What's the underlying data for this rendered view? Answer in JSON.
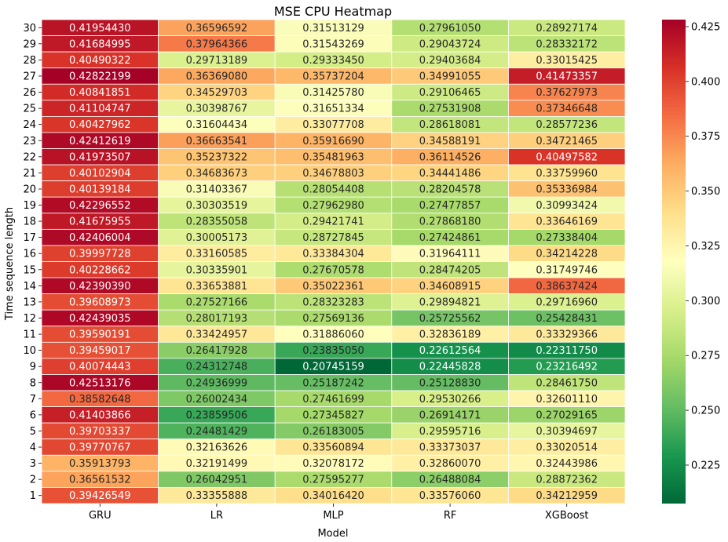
{
  "chart_data": {
    "type": "heatmap",
    "title": "MSE CPU Heatmap",
    "xlabel": "Model",
    "ylabel": "Time sequence length",
    "columns": [
      "GRU",
      "LR",
      "MLP",
      "RF",
      "XGBoost"
    ],
    "rows": [
      "30",
      "29",
      "28",
      "27",
      "26",
      "25",
      "24",
      "23",
      "22",
      "21",
      "20",
      "19",
      "18",
      "17",
      "16",
      "15",
      "14",
      "13",
      "12",
      "11",
      "10",
      "9",
      "8",
      "7",
      "6",
      "5",
      "4",
      "3",
      "2",
      "1"
    ],
    "values": [
      [
        0.4195443,
        0.36596592,
        0.31513129,
        0.2796105,
        0.28927174
      ],
      [
        0.41684995,
        0.37964366,
        0.31543269,
        0.29043724,
        0.28332172
      ],
      [
        0.40490322,
        0.29713189,
        0.2933345,
        0.29403684,
        0.33015425
      ],
      [
        0.42822199,
        0.3636908,
        0.35737204,
        0.34991055,
        0.41473357
      ],
      [
        0.40841851,
        0.34529703,
        0.3142578,
        0.29106465,
        0.37627973
      ],
      [
        0.41104747,
        0.30398767,
        0.31651334,
        0.27531908,
        0.37346648
      ],
      [
        0.40427962,
        0.31604434,
        0.33077708,
        0.28618081,
        0.28577236
      ],
      [
        0.42412619,
        0.36663541,
        0.3591669,
        0.34588191,
        0.34721465
      ],
      [
        0.41973507,
        0.35237322,
        0.35481963,
        0.36114526,
        0.40497582
      ],
      [
        0.40102904,
        0.34683673,
        0.34678803,
        0.34441486,
        0.3375996
      ],
      [
        0.40139184,
        0.31403367,
        0.28054408,
        0.28204578,
        0.35336984
      ],
      [
        0.42296552,
        0.30303519,
        0.2796298,
        0.27477857,
        0.30993424
      ],
      [
        0.41675955,
        0.28355058,
        0.29421741,
        0.2786818,
        0.33646169
      ],
      [
        0.42406004,
        0.30005173,
        0.28727845,
        0.27424861,
        0.27338404
      ],
      [
        0.39997728,
        0.33160585,
        0.33384304,
        0.31964111,
        0.34214228
      ],
      [
        0.40228662,
        0.30335901,
        0.27670578,
        0.28474205,
        0.31749746
      ],
      [
        0.4239039,
        0.33653881,
        0.35022361,
        0.34608915,
        0.38637424
      ],
      [
        0.39608973,
        0.27527166,
        0.28323283,
        0.29894821,
        0.2971696
      ],
      [
        0.42439035,
        0.28017193,
        0.27569136,
        0.25725562,
        0.25428431
      ],
      [
        0.39590191,
        0.33424957,
        0.3188606,
        0.32836189,
        0.33329366
      ],
      [
        0.39459017,
        0.26417928,
        0.2383505,
        0.22612564,
        0.2231175
      ],
      [
        0.40074443,
        0.24312748,
        0.20745159,
        0.22445828,
        0.23216492
      ],
      [
        0.42513176,
        0.24936999,
        0.25187242,
        0.2512883,
        0.2846175
      ],
      [
        0.38582648,
        0.26002434,
        0.27461699,
        0.29530266,
        0.3260111
      ],
      [
        0.41403866,
        0.23859506,
        0.27345827,
        0.26914171,
        0.27029165
      ],
      [
        0.39703337,
        0.24481429,
        0.26183005,
        0.29595716,
        0.30394697
      ],
      [
        0.39770767,
        0.32163626,
        0.33560894,
        0.33373037,
        0.33020514
      ],
      [
        0.35913793,
        0.32191499,
        0.32078172,
        0.3286007,
        0.32443986
      ],
      [
        0.36561532,
        0.26042951,
        0.27595277,
        0.26488084,
        0.28872362
      ],
      [
        0.39426549,
        0.33355888,
        0.3401642,
        0.3357606,
        0.34212959
      ]
    ],
    "colormap": "RdYlGn_r",
    "vmin": 0.20745159,
    "vmax": 0.42822199,
    "colorbar_ticks": [
      "0.225",
      "0.250",
      "0.275",
      "0.300",
      "0.325",
      "0.350",
      "0.375",
      "0.400",
      "0.425"
    ],
    "colorbar_tick_values": [
      0.225,
      0.25,
      0.275,
      0.3,
      0.325,
      0.35,
      0.375,
      0.4,
      0.425
    ]
  }
}
